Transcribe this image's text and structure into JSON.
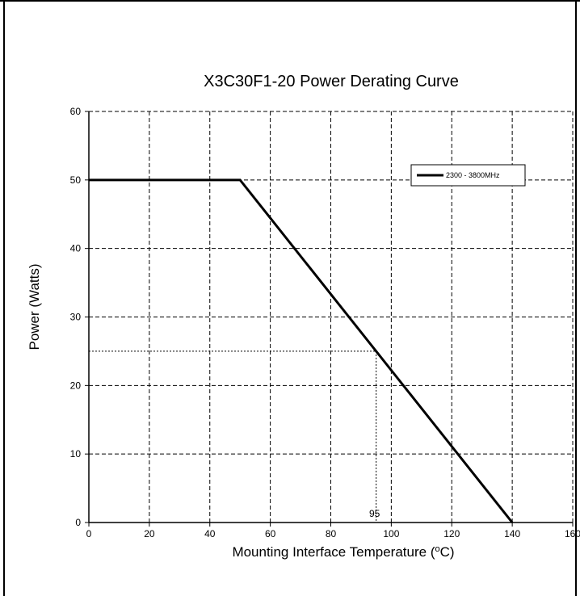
{
  "chart_data": {
    "type": "line",
    "title": "X3C30F1-20 Power Derating Curve",
    "xlabel": "Mounting Interface Temperature (",
    "xlabel_sup": "o",
    "xlabel_unit": "C)",
    "ylabel": "Power (Watts)",
    "xlim": [
      0,
      160
    ],
    "ylim": [
      0,
      60
    ],
    "x_ticks": [
      0,
      20,
      40,
      60,
      80,
      100,
      120,
      140,
      160
    ],
    "y_ticks": [
      0,
      10,
      20,
      30,
      40,
      50,
      60
    ],
    "grid": true,
    "legend_position": "top-right",
    "series": [
      {
        "name": "2300 - 3800MHz",
        "x": [
          0,
          50,
          140
        ],
        "y": [
          50,
          50,
          0
        ],
        "color": "#000000"
      }
    ],
    "annotations": [
      {
        "type": "reference-lines",
        "x": 95,
        "y": 25,
        "label": "95"
      }
    ]
  }
}
